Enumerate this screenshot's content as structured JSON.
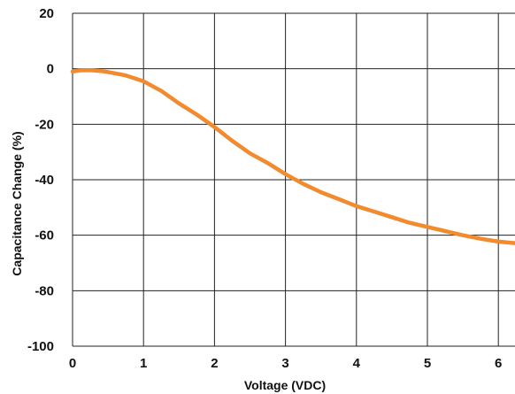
{
  "chart_data": {
    "type": "line",
    "xlabel": "Voltage  (VDC)",
    "ylabel": "Capacitance Change (%)",
    "xlim": [
      0,
      6.3
    ],
    "ylim": [
      -100,
      20
    ],
    "x_ticks": [
      0,
      1,
      2,
      3,
      4,
      5,
      6
    ],
    "y_ticks": [
      20,
      0,
      -20,
      -40,
      -60,
      -80,
      -100
    ],
    "grid": true,
    "series": [
      {
        "color": "#f28a2e",
        "x": [
          0,
          0.1,
          0.25,
          0.4,
          0.5,
          0.75,
          1.0,
          1.25,
          1.5,
          1.75,
          2.0,
          2.25,
          2.5,
          2.75,
          3.0,
          3.25,
          3.5,
          3.75,
          4.0,
          4.25,
          4.5,
          4.75,
          5.0,
          5.25,
          5.5,
          5.75,
          6.0,
          6.3
        ],
        "y": [
          -1,
          -0.6,
          -0.5,
          -0.8,
          -1.2,
          -2.4,
          -4.5,
          -8,
          -12.5,
          -16.5,
          -21,
          -26,
          -30.5,
          -34,
          -38,
          -41.5,
          -44.5,
          -47,
          -49.5,
          -51.5,
          -53.5,
          -55.5,
          -57,
          -58.5,
          -60,
          -61.3,
          -62.3,
          -63
        ]
      }
    ]
  }
}
